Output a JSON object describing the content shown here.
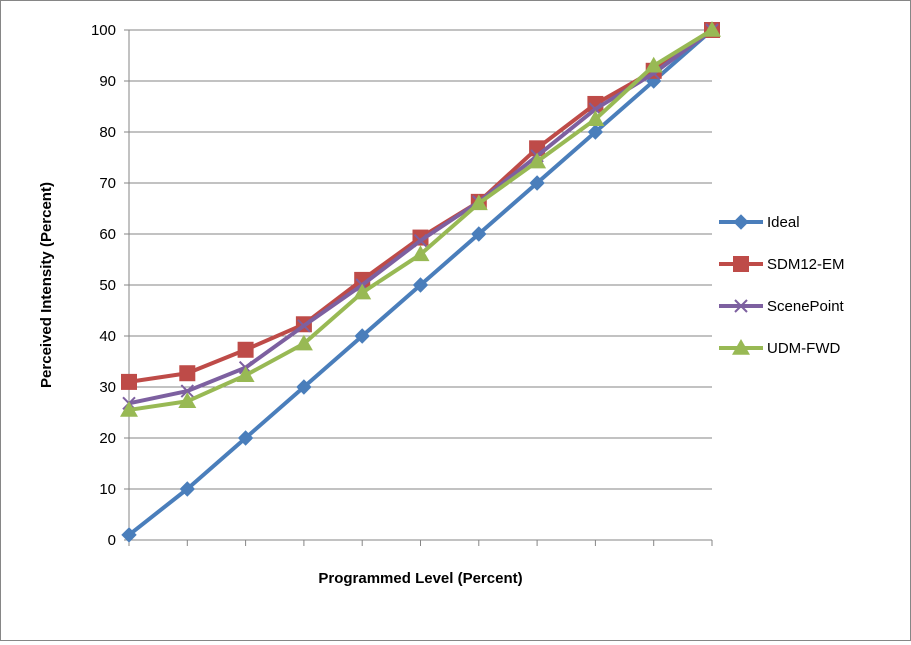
{
  "chart_data": {
    "type": "line",
    "title": "",
    "xlabel": "Programmed Level (Percent)",
    "ylabel": "Perceived Intensity (Percent)",
    "ylim": [
      0,
      100
    ],
    "yticks": [
      0,
      10,
      20,
      30,
      40,
      50,
      60,
      70,
      80,
      90,
      100
    ],
    "x": [
      0,
      10,
      20,
      30,
      40,
      50,
      60,
      70,
      80,
      90,
      100
    ],
    "grid": "horizontal",
    "legend": "right",
    "series": [
      {
        "name": "Ideal",
        "color": "#4a7ebb",
        "marker": "diamond",
        "values": [
          1,
          10,
          20,
          30,
          40,
          50,
          60,
          70,
          80,
          90,
          100
        ]
      },
      {
        "name": "SDM12-EM",
        "color": "#be4b48",
        "marker": "square",
        "values": [
          31,
          32.7,
          37.3,
          42.3,
          51,
          59.3,
          66.3,
          76.8,
          85.5,
          92,
          100
        ]
      },
      {
        "name": "ScenePoint",
        "color": "#7d60a0",
        "marker": "x",
        "values": [
          26.8,
          29.2,
          33.8,
          42,
          50,
          58.7,
          66.3,
          75.3,
          84.5,
          91.5,
          100
        ]
      },
      {
        "name": "UDM-FWD",
        "color": "#98b954",
        "marker": "triangle",
        "values": [
          25.5,
          27.2,
          32.3,
          38.5,
          48.5,
          56,
          66,
          74.2,
          82.5,
          93,
          100
        ]
      }
    ]
  }
}
